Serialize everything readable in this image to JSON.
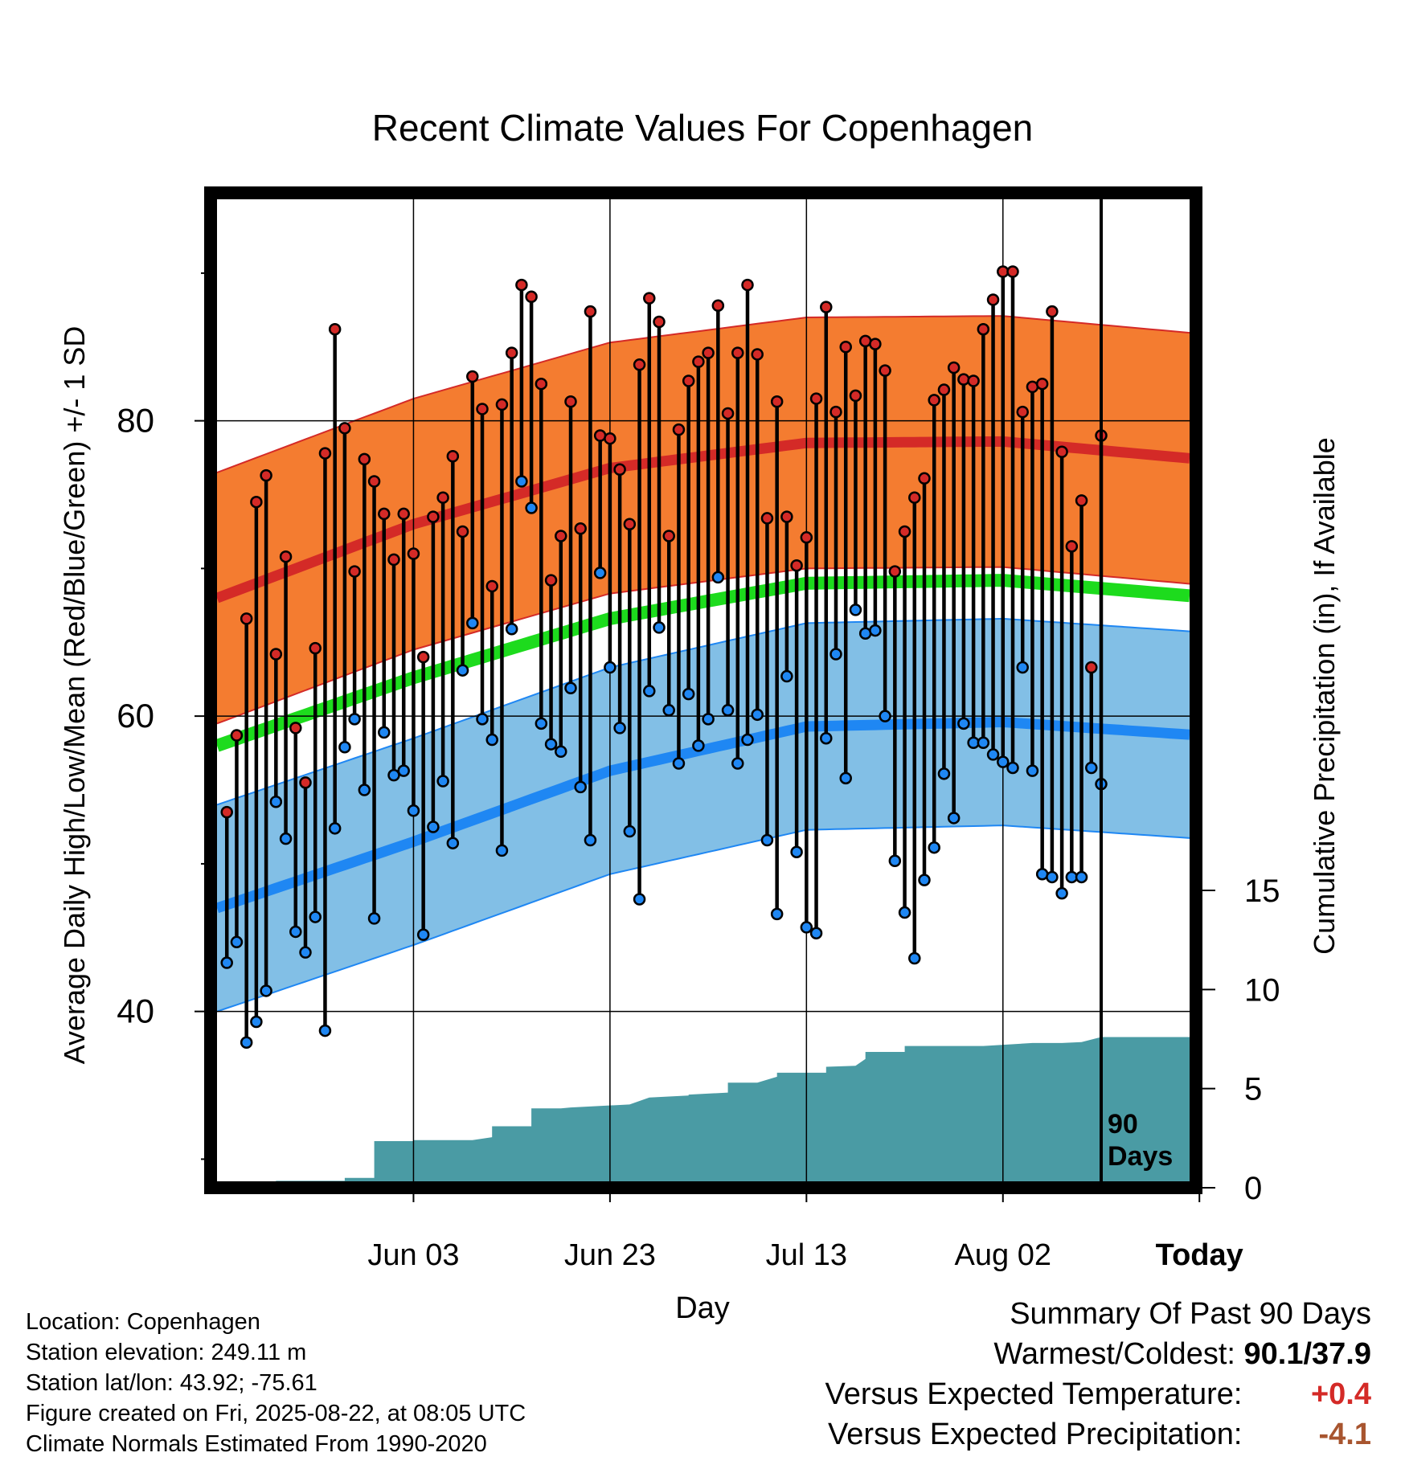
{
  "colors": {
    "high_band": "#f47c30",
    "high_line": "#d42a27",
    "mean_line": "#1ddb1d",
    "low_band": "#82bfe6",
    "low_line": "#1f87f3",
    "precip": "#4a9ba4",
    "high_dot": "#d42a27",
    "low_dot": "#1f87f3",
    "positive": "#d42a27",
    "negative": "#a8552f"
  },
  "chart_data": {
    "type": "line",
    "title": "Recent Climate Values For Copenhagen",
    "xlabel": "Day",
    "ylabel": "Average Daily High/Low/Mean (Red/Blue/Green) +/- 1 SD",
    "y2label": "Cumulative Precipitation (in), If Available",
    "x_ticks": [
      "Jun 03",
      "Jun 23",
      "Jul 13",
      "Aug 02",
      "Today"
    ],
    "y_ticks": [
      40,
      60,
      80
    ],
    "y2_ticks": [
      0,
      5,
      10,
      15
    ],
    "ylim": [
      28.5,
      95
    ],
    "y2lim": [
      0,
      15
    ],
    "x_range_days": [
      -90,
      9
    ],
    "grid": true,
    "today_label": "90 Days",
    "normal_high": [
      68.0,
      73.0,
      76.8,
      78.5,
      78.6,
      77.4,
      75.1
    ],
    "normal_high_sd": 8.5,
    "normal_mean": [
      58.0,
      62.6,
      66.6,
      69.0,
      69.2,
      68.1,
      65.3
    ],
    "normal_mean_sd": 0,
    "normal_low": [
      47.0,
      51.5,
      56.3,
      59.3,
      59.6,
      58.7,
      55.0
    ],
    "normal_low_sd": 7.0,
    "normal_x": [
      -90,
      -70,
      -50,
      -30,
      -10,
      10,
      9
    ],
    "daily_high": [
      53.5,
      58.7,
      66.6,
      74.5,
      76.3,
      64.2,
      70.8,
      59.2,
      55.5,
      64.6,
      77.8,
      86.2,
      79.5,
      69.8,
      77.4,
      75.9,
      73.7,
      70.6,
      73.7,
      71.0,
      64.0,
      73.5,
      74.8,
      77.6,
      72.5,
      83.0,
      80.8,
      68.8,
      81.1,
      84.6,
      89.2,
      88.4,
      82.5,
      69.2,
      72.2,
      81.3,
      72.7,
      87.4,
      79.0,
      78.8,
      76.7,
      73.0,
      83.8,
      88.3,
      86.7,
      72.2,
      79.4,
      82.7,
      84.0,
      84.6,
      87.8,
      80.5,
      84.6,
      89.2,
      84.5,
      73.4,
      81.3,
      73.5,
      70.2,
      72.1,
      81.5,
      87.7,
      80.6,
      85.0,
      81.7,
      85.4,
      85.2,
      83.4,
      69.8,
      72.5,
      74.8,
      76.1,
      81.4,
      82.1,
      83.6,
      82.8,
      82.7,
      86.2,
      88.2,
      90.1,
      90.1,
      80.6,
      82.3,
      82.5,
      87.4,
      77.9,
      71.5,
      74.6,
      63.3,
      79.0
    ],
    "daily_low": [
      43.3,
      44.7,
      37.9,
      39.3,
      41.4,
      54.2,
      51.7,
      45.4,
      44.0,
      46.4,
      38.7,
      52.4,
      57.9,
      59.8,
      55.0,
      46.3,
      58.9,
      56.0,
      56.3,
      53.6,
      45.2,
      52.5,
      55.6,
      51.4,
      63.1,
      66.3,
      59.8,
      58.4,
      50.9,
      65.9,
      75.9,
      74.1,
      59.5,
      58.1,
      57.6,
      61.9,
      55.2,
      51.6,
      69.7,
      63.3,
      59.2,
      52.2,
      47.6,
      61.7,
      66.0,
      60.4,
      56.8,
      61.5,
      58.0,
      59.8,
      69.4,
      60.4,
      56.8,
      58.4,
      60.1,
      51.6,
      46.6,
      62.7,
      50.8,
      45.7,
      45.3,
      58.5,
      64.2,
      55.8,
      67.2,
      65.6,
      65.8,
      60.0,
      50.2,
      46.7,
      43.6,
      48.9,
      51.1,
      56.1,
      53.1,
      59.5,
      58.2,
      58.2,
      57.4,
      56.9,
      56.5,
      63.3,
      56.3,
      49.3,
      49.1,
      48.0,
      49.1,
      49.1,
      56.5,
      55.4
    ],
    "cumulative_precip_x": [
      -90,
      -84,
      -84,
      -77,
      -77,
      -74,
      -74,
      -70,
      -70,
      -68,
      -67,
      -64,
      -62,
      -62,
      -58,
      -58,
      -55,
      -54,
      -48,
      -46,
      -44,
      -42,
      -42,
      -38,
      -38,
      -35,
      -33,
      -33,
      -28,
      -28,
      -25,
      -24,
      -24,
      -20,
      -20,
      -19,
      -16,
      -16,
      -12,
      -12,
      -7,
      -4,
      -2,
      0,
      9
    ],
    "cumulative_precip": [
      0,
      0,
      0.35,
      0.35,
      0.5,
      0.5,
      2.35,
      2.35,
      2.4,
      2.4,
      2.4,
      2.4,
      2.55,
      3.1,
      3.1,
      4.0,
      4.0,
      4.05,
      4.2,
      4.55,
      4.6,
      4.65,
      4.7,
      4.8,
      5.3,
      5.3,
      5.6,
      5.8,
      5.8,
      6.1,
      6.15,
      6.5,
      6.85,
      6.85,
      7.15,
      7.15,
      7.15,
      7.15,
      7.15,
      7.15,
      7.3,
      7.3,
      7.35,
      7.6,
      7.6
    ]
  },
  "info": {
    "location": "Location: Copenhagen",
    "elevation": "Station elevation: 249.11 m",
    "latlon": "Station lat/lon: 43.92; -75.61",
    "created": "Figure created on Fri, 2025-08-22, at 08:05 UTC",
    "normals": "Climate Normals Estimated From 1990-2020"
  },
  "summary": {
    "heading": "Summary Of Past 90 Days",
    "warm_cold_label": "Warmest/Coldest:",
    "warm_cold_value": "90.1/37.9",
    "temp_label": "Versus Expected Temperature:",
    "temp_value": "+0.4",
    "precip_label": "Versus Expected Precipitation:",
    "precip_value": "-4.1"
  }
}
